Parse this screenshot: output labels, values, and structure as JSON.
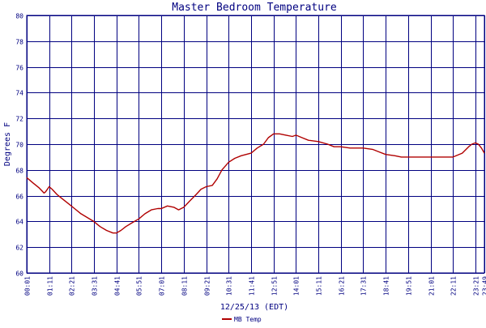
{
  "chart_data": {
    "type": "line",
    "title": "Master Bedroom Temperature",
    "xlabel": "12/25/13 (EDT)",
    "ylabel": "Degrees F",
    "ylim": [
      60,
      80
    ],
    "yticks": [
      60,
      62,
      64,
      66,
      68,
      70,
      72,
      74,
      76,
      78,
      80
    ],
    "xticks": [
      "00:01",
      "01:11",
      "02:21",
      "03:31",
      "04:41",
      "05:51",
      "07:01",
      "08:11",
      "09:21",
      "10:31",
      "11:41",
      "12:51",
      "14:01",
      "15:11",
      "16:21",
      "17:31",
      "18:41",
      "19:51",
      "21:01",
      "22:11",
      "23:21",
      "23:49"
    ],
    "grid": true,
    "legend_position": "bottom-left",
    "colors": {
      "series": "#b00000",
      "grid": "#000080",
      "text": "#000080"
    },
    "series": [
      {
        "name": "MB Temp",
        "x": [
          "00:01",
          "00:20",
          "00:40",
          "00:55",
          "01:00",
          "01:11",
          "01:20",
          "01:35",
          "01:50",
          "02:10",
          "02:30",
          "02:50",
          "03:10",
          "03:30",
          "03:50",
          "04:10",
          "04:30",
          "04:41",
          "04:55",
          "05:10",
          "05:30",
          "05:51",
          "06:10",
          "06:30",
          "06:50",
          "07:01",
          "07:20",
          "07:40",
          "07:55",
          "08:11",
          "08:30",
          "08:50",
          "09:05",
          "09:21",
          "09:40",
          "09:55",
          "10:10",
          "10:31",
          "10:50",
          "11:10",
          "11:41",
          "12:00",
          "12:20",
          "12:35",
          "12:51",
          "13:10",
          "13:30",
          "13:50",
          "14:01",
          "14:20",
          "14:40",
          "15:11",
          "15:40",
          "16:00",
          "16:21",
          "16:50",
          "17:10",
          "17:31",
          "18:00",
          "18:20",
          "18:41",
          "19:10",
          "19:30",
          "19:51",
          "20:30",
          "21:01",
          "21:40",
          "22:11",
          "22:40",
          "23:00",
          "23:10",
          "23:21",
          "23:30",
          "23:40",
          "23:49"
        ],
        "values": [
          67.4,
          67.0,
          66.6,
          66.2,
          66.3,
          66.7,
          66.5,
          66.1,
          65.8,
          65.4,
          65.0,
          64.6,
          64.3,
          64.0,
          63.6,
          63.3,
          63.1,
          63.1,
          63.3,
          63.6,
          63.9,
          64.2,
          64.6,
          64.9,
          65.0,
          65.0,
          65.2,
          65.1,
          64.9,
          65.1,
          65.6,
          66.1,
          66.5,
          66.7,
          66.8,
          67.3,
          68.0,
          68.6,
          68.9,
          69.1,
          69.3,
          69.7,
          70.0,
          70.5,
          70.8,
          70.8,
          70.7,
          70.6,
          70.7,
          70.5,
          70.3,
          70.2,
          70.0,
          69.8,
          69.8,
          69.7,
          69.7,
          69.7,
          69.6,
          69.4,
          69.2,
          69.1,
          69.0,
          69.0,
          69.0,
          69.0,
          69.0,
          69.0,
          69.3,
          69.8,
          70.0,
          70.1,
          70.0,
          69.7,
          69.3
        ]
      }
    ]
  }
}
